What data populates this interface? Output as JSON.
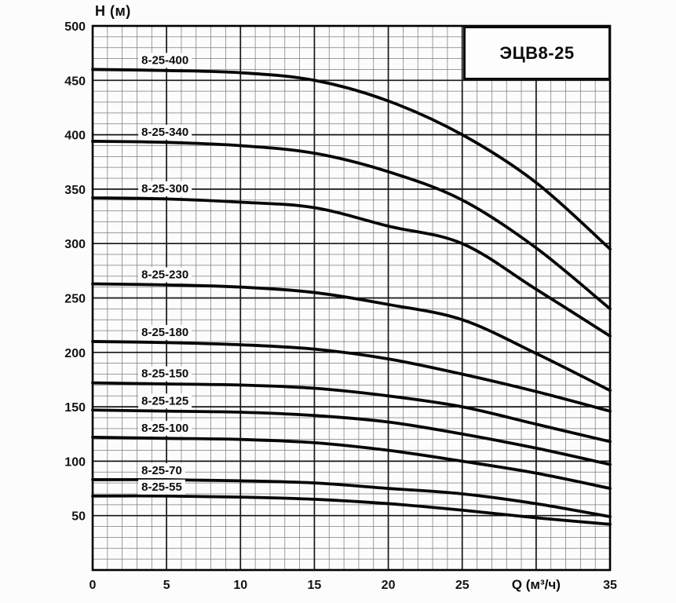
{
  "chart": {
    "title": "ЭЦВ8-25",
    "y_axis_title": "H (м)",
    "x_axis_title": "Q (м³/ч)"
  },
  "chart_data": {
    "type": "line",
    "title": "ЭЦВ8-25",
    "xlabel": "Q (м³/ч)",
    "ylabel": "H (м)",
    "xlim": [
      0,
      35
    ],
    "ylim": [
      0,
      500
    ],
    "grid": "on",
    "x_major_step": 5,
    "x_minor_step": 1,
    "y_major_step": 50,
    "y_minor_step": 10,
    "x_tick_labels": [
      "0",
      "5",
      "10",
      "15",
      "20",
      "25",
      "",
      "35"
    ],
    "y_tick_labels": [
      "50",
      "100",
      "150",
      "200",
      "250",
      "300",
      "350",
      "400",
      "450",
      "500"
    ],
    "xlabel_at_q": 30,
    "legend_position": "labels-on-curves",
    "x": [
      0,
      5,
      10,
      15,
      20,
      25,
      30,
      35
    ],
    "series": [
      {
        "name": "8-25-400",
        "values": [
          460,
          459,
          457,
          450,
          431,
          400,
          356,
          295
        ]
      },
      {
        "name": "8-25-340",
        "values": [
          394,
          393,
          390,
          383,
          366,
          340,
          296,
          240
        ]
      },
      {
        "name": "8-25-300",
        "values": [
          342,
          341,
          338,
          333,
          316,
          300,
          258,
          215
        ]
      },
      {
        "name": "8-25-230",
        "values": [
          263,
          262,
          260,
          255,
          244,
          230,
          199,
          165
        ]
      },
      {
        "name": "8-25-180",
        "values": [
          210,
          209,
          207,
          203,
          194,
          180,
          164,
          146
        ]
      },
      {
        "name": "8-25-150",
        "values": [
          172,
          171,
          170,
          167,
          160,
          150,
          134,
          118
        ]
      },
      {
        "name": "8-25-125",
        "values": [
          147,
          146,
          145,
          142,
          136,
          125,
          112,
          97
        ]
      },
      {
        "name": "8-25-100",
        "values": [
          122,
          121,
          120,
          117,
          110,
          100,
          89,
          75
        ]
      },
      {
        "name": "8-25-70",
        "values": [
          83,
          83,
          82,
          80,
          75,
          70,
          61,
          49
        ]
      },
      {
        "name": "8-25-55",
        "values": [
          68,
          68,
          67,
          65,
          61,
          55,
          48,
          42
        ]
      }
    ]
  },
  "colors": {
    "page_bg": "#fcfcfc",
    "plot_bg": "#fcfcfc",
    "grid_minor": "#7d7d7d",
    "grid_major": "#161616",
    "border": "#000000",
    "curve": "#070707",
    "text": "#0c0c0c"
  }
}
